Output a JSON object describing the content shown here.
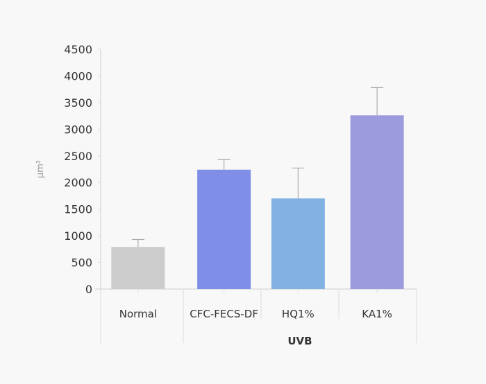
{
  "chart_data": {
    "type": "bar",
    "title": "",
    "xlabel": "",
    "ylabel": "μm²",
    "ylim": [
      0,
      4500
    ],
    "yticks": [
      0,
      500,
      1000,
      1500,
      2000,
      2500,
      3000,
      3500,
      4000,
      4500
    ],
    "grid": false,
    "categories": [
      "Normal",
      "CFC-FECS-DF",
      "HQ1%",
      "KA1%"
    ],
    "values": [
      790,
      2240,
      1700,
      3260
    ],
    "error_upper": [
      930,
      2430,
      2270,
      3780
    ],
    "colors": [
      "#cccccc",
      "#7f8ee6",
      "#82b2e2",
      "#9b9bde"
    ],
    "group_label": {
      "text": "UVB",
      "categories": [
        "CFC-FECS-DF",
        "HQ1%",
        "KA1%"
      ]
    }
  }
}
